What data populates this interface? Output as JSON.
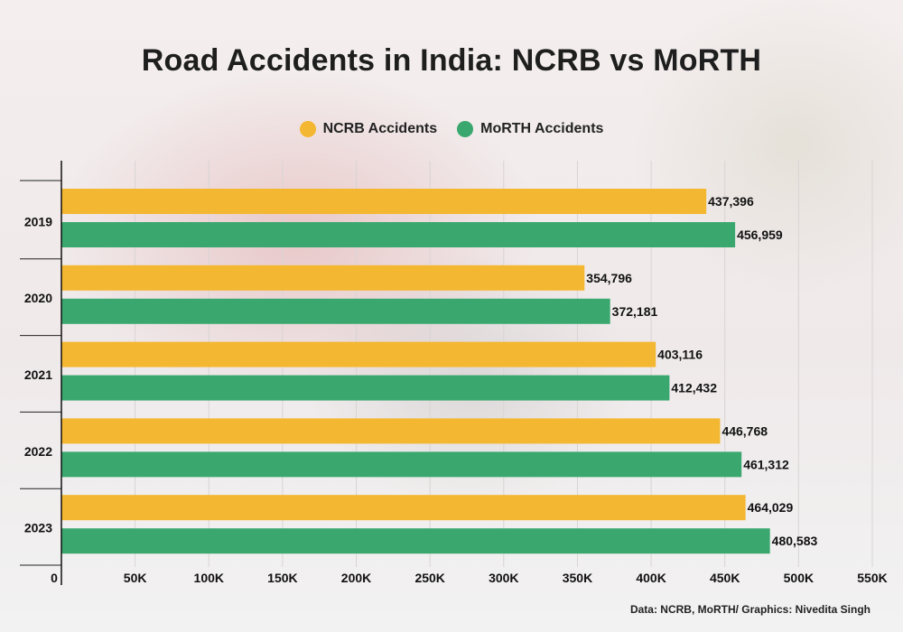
{
  "chart_data": {
    "type": "bar",
    "orientation": "horizontal",
    "title": "Road Accidents in India: NCRB vs MoRTH",
    "categories": [
      "2019",
      "2020",
      "2021",
      "2022",
      "2023"
    ],
    "series": [
      {
        "name": "NCRB Accidents",
        "color": "#f4b731",
        "values": [
          437396,
          354796,
          403116,
          446768,
          464029
        ],
        "labels": [
          "437,396",
          "354,796",
          "403,116",
          "446,768",
          "464,029"
        ]
      },
      {
        "name": "MoRTH Accidents",
        "color": "#3aa86e",
        "values": [
          456959,
          372181,
          412432,
          461312,
          480583
        ],
        "labels": [
          "456,959",
          "372,181",
          "412,432",
          "461,312",
          "480,583"
        ]
      }
    ],
    "xlim": [
      0,
      550000
    ],
    "xticks": [
      0,
      50000,
      100000,
      150000,
      200000,
      250000,
      300000,
      350000,
      400000,
      450000,
      500000,
      550000
    ],
    "xtick_labels": [
      "0",
      "50K",
      "100K",
      "150K",
      "200K",
      "250K",
      "300K",
      "350K",
      "400K",
      "450K",
      "500K",
      "550K"
    ],
    "xlabel": "",
    "ylabel": "",
    "grid": true,
    "legend_position": "top-center",
    "source": "Data: NCRB, MoRTH/ Graphics: Nivedita Singh"
  }
}
